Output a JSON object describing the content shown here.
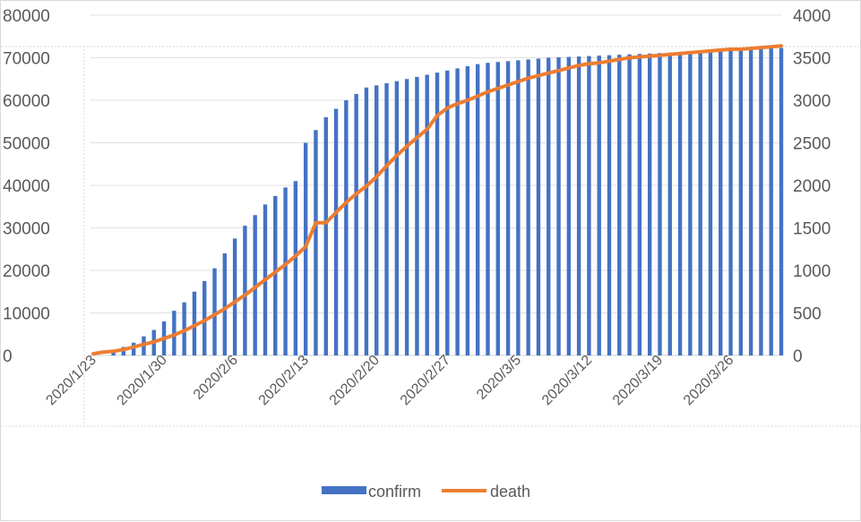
{
  "chart_data": {
    "type": "bar+line",
    "x_tick_labels": [
      "2020/1/23",
      "2020/1/30",
      "2020/2/6",
      "2020/2/13",
      "2020/2/20",
      "2020/2/27",
      "2020/3/5",
      "2020/3/12",
      "2020/3/19",
      "2020/3/26"
    ],
    "y_left_ticks": [
      "0",
      "10000",
      "20000",
      "30000",
      "40000",
      "50000",
      "60000",
      "70000",
      "80000"
    ],
    "y_right_ticks": [
      "0",
      "500",
      "1000",
      "1500",
      "2000",
      "2500",
      "3000",
      "3500",
      "4000"
    ],
    "y_left_lim": [
      0,
      80000
    ],
    "y_right_lim": [
      0,
      4000
    ],
    "grid": true,
    "legend_position": "bottom",
    "series": [
      {
        "name": "confirm",
        "type": "bar",
        "axis": "left",
        "color": "#4472c4",
        "values": [
          0,
          0,
          1000,
          2000,
          3000,
          4500,
          6000,
          8000,
          10500,
          12500,
          15000,
          17500,
          20500,
          24000,
          27500,
          30500,
          33000,
          35500,
          37500,
          39500,
          41000,
          50000,
          53000,
          56000,
          58000,
          60000,
          61500,
          63000,
          63500,
          64000,
          64500,
          65000,
          65500,
          66000,
          66500,
          67000,
          67500,
          68000,
          68500,
          68800,
          69000,
          69200,
          69400,
          69600,
          69800,
          70000,
          70100,
          70200,
          70300,
          70400,
          70500,
          70600,
          70700,
          70800,
          70900,
          71000,
          71100,
          71200,
          71300,
          71400,
          71500,
          71600,
          71700,
          71800,
          71900,
          72000,
          72100,
          72200,
          72300
        ]
      },
      {
        "name": "death",
        "type": "line",
        "axis": "right",
        "color": "#ed7d31",
        "values": [
          20,
          40,
          50,
          70,
          100,
          130,
          160,
          200,
          240,
          290,
          350,
          410,
          480,
          550,
          630,
          710,
          800,
          890,
          980,
          1070,
          1170,
          1280,
          1560,
          1560,
          1680,
          1800,
          1900,
          1990,
          2100,
          2230,
          2350,
          2460,
          2560,
          2660,
          2820,
          2910,
          2960,
          3000,
          3050,
          3100,
          3140,
          3180,
          3220,
          3260,
          3290,
          3320,
          3350,
          3380,
          3410,
          3430,
          3440,
          3460,
          3480,
          3500,
          3510,
          3520,
          3530,
          3540,
          3550,
          3560,
          3570,
          3580,
          3590,
          3600,
          3600,
          3610,
          3620,
          3630,
          3640
        ]
      }
    ]
  },
  "legend": {
    "confirm_label": "confirm",
    "death_label": "death"
  }
}
